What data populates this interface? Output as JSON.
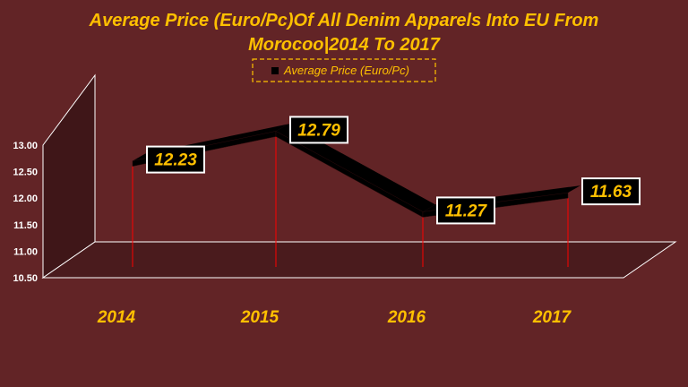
{
  "chart_data": {
    "type": "line",
    "title_lines": [
      "Average Price (Euro/Pc)Of All Denim Apparels Into EU From",
      "Morocoo|2014 To 2017"
    ],
    "categories": [
      "2014",
      "2015",
      "2016",
      "2017"
    ],
    "series": [
      {
        "name": "Average Price (Euro/Pc)",
        "values": [
          12.23,
          12.79,
          11.27,
          11.63
        ]
      }
    ],
    "data_labels": [
      "12.23",
      "12.79",
      "11.27",
      "11.63"
    ],
    "ylim": [
      10.5,
      13.0
    ],
    "yticks": [
      "10.50",
      "11.00",
      "11.50",
      "12.00",
      "12.50",
      "13.00"
    ],
    "xlabel": "",
    "ylabel": "",
    "legend_position": "top",
    "style": "3d-line",
    "gridlines": false,
    "colors": {
      "background": "#622426",
      "title": "#FFC000",
      "line": "#000000",
      "drop_lines": "#FF0000",
      "label_box": "#000000",
      "label_border": "#FFFFFF",
      "axis_text": "#FFFFFF"
    }
  }
}
